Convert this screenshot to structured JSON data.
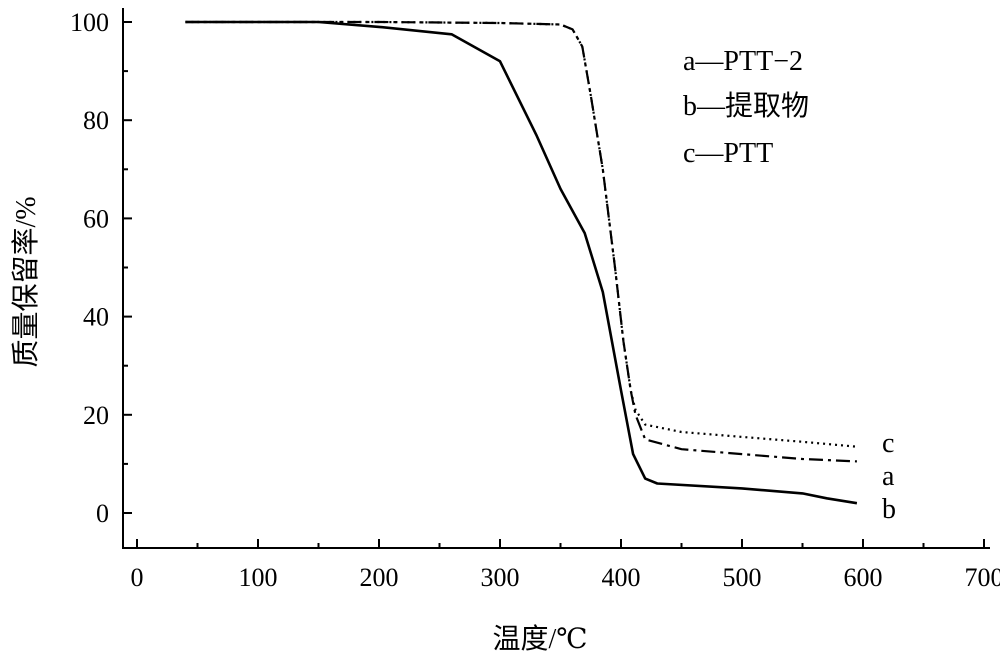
{
  "chart_data": {
    "type": "line",
    "title": "",
    "xlabel": "温度/℃",
    "ylabel": "质量保留率/%",
    "xlim": [
      -10,
      700
    ],
    "ylim": [
      -7,
      100
    ],
    "xticks": [
      0,
      100,
      200,
      300,
      400,
      500,
      600,
      700
    ],
    "yticks": [
      0,
      20,
      40,
      60,
      80,
      100
    ],
    "grid": false,
    "legend_position": "top-right",
    "legend": [
      "a—PTT−2",
      "b—提取物",
      "c—PTT"
    ],
    "series": [
      {
        "name": "a",
        "label": "a—PTT−2",
        "end_label": "a",
        "style": "dash-dot",
        "x": [
          40,
          200,
          300,
          350,
          360,
          368,
          375,
          385,
          395,
          402,
          408,
          412,
          420,
          450,
          500,
          550,
          595
        ],
        "y": [
          100,
          100,
          99.8,
          99.5,
          98.5,
          95,
          85,
          70,
          50,
          35,
          25,
          20,
          15,
          13,
          12,
          11,
          10.5
        ]
      },
      {
        "name": "b",
        "label": "b—提取物",
        "end_label": "b",
        "style": "solid",
        "x": [
          40,
          150,
          200,
          260,
          300,
          330,
          350,
          370,
          385,
          400,
          410,
          420,
          430,
          500,
          550,
          570,
          595
        ],
        "y": [
          100,
          100,
          99,
          97.5,
          92,
          77,
          66,
          57,
          45,
          25,
          12,
          7,
          6,
          5,
          4,
          3,
          2
        ]
      },
      {
        "name": "c",
        "label": "c—PTT",
        "end_label": "c",
        "style": "dotted",
        "x": [
          40,
          200,
          300,
          350,
          360,
          368,
          375,
          385,
          395,
          402,
          408,
          412,
          420,
          450,
          500,
          550,
          595
        ],
        "y": [
          100,
          100,
          99.8,
          99.5,
          98.5,
          95,
          85,
          70,
          50,
          35,
          25,
          21,
          18,
          16.5,
          15.5,
          14.5,
          13.5
        ]
      }
    ]
  }
}
